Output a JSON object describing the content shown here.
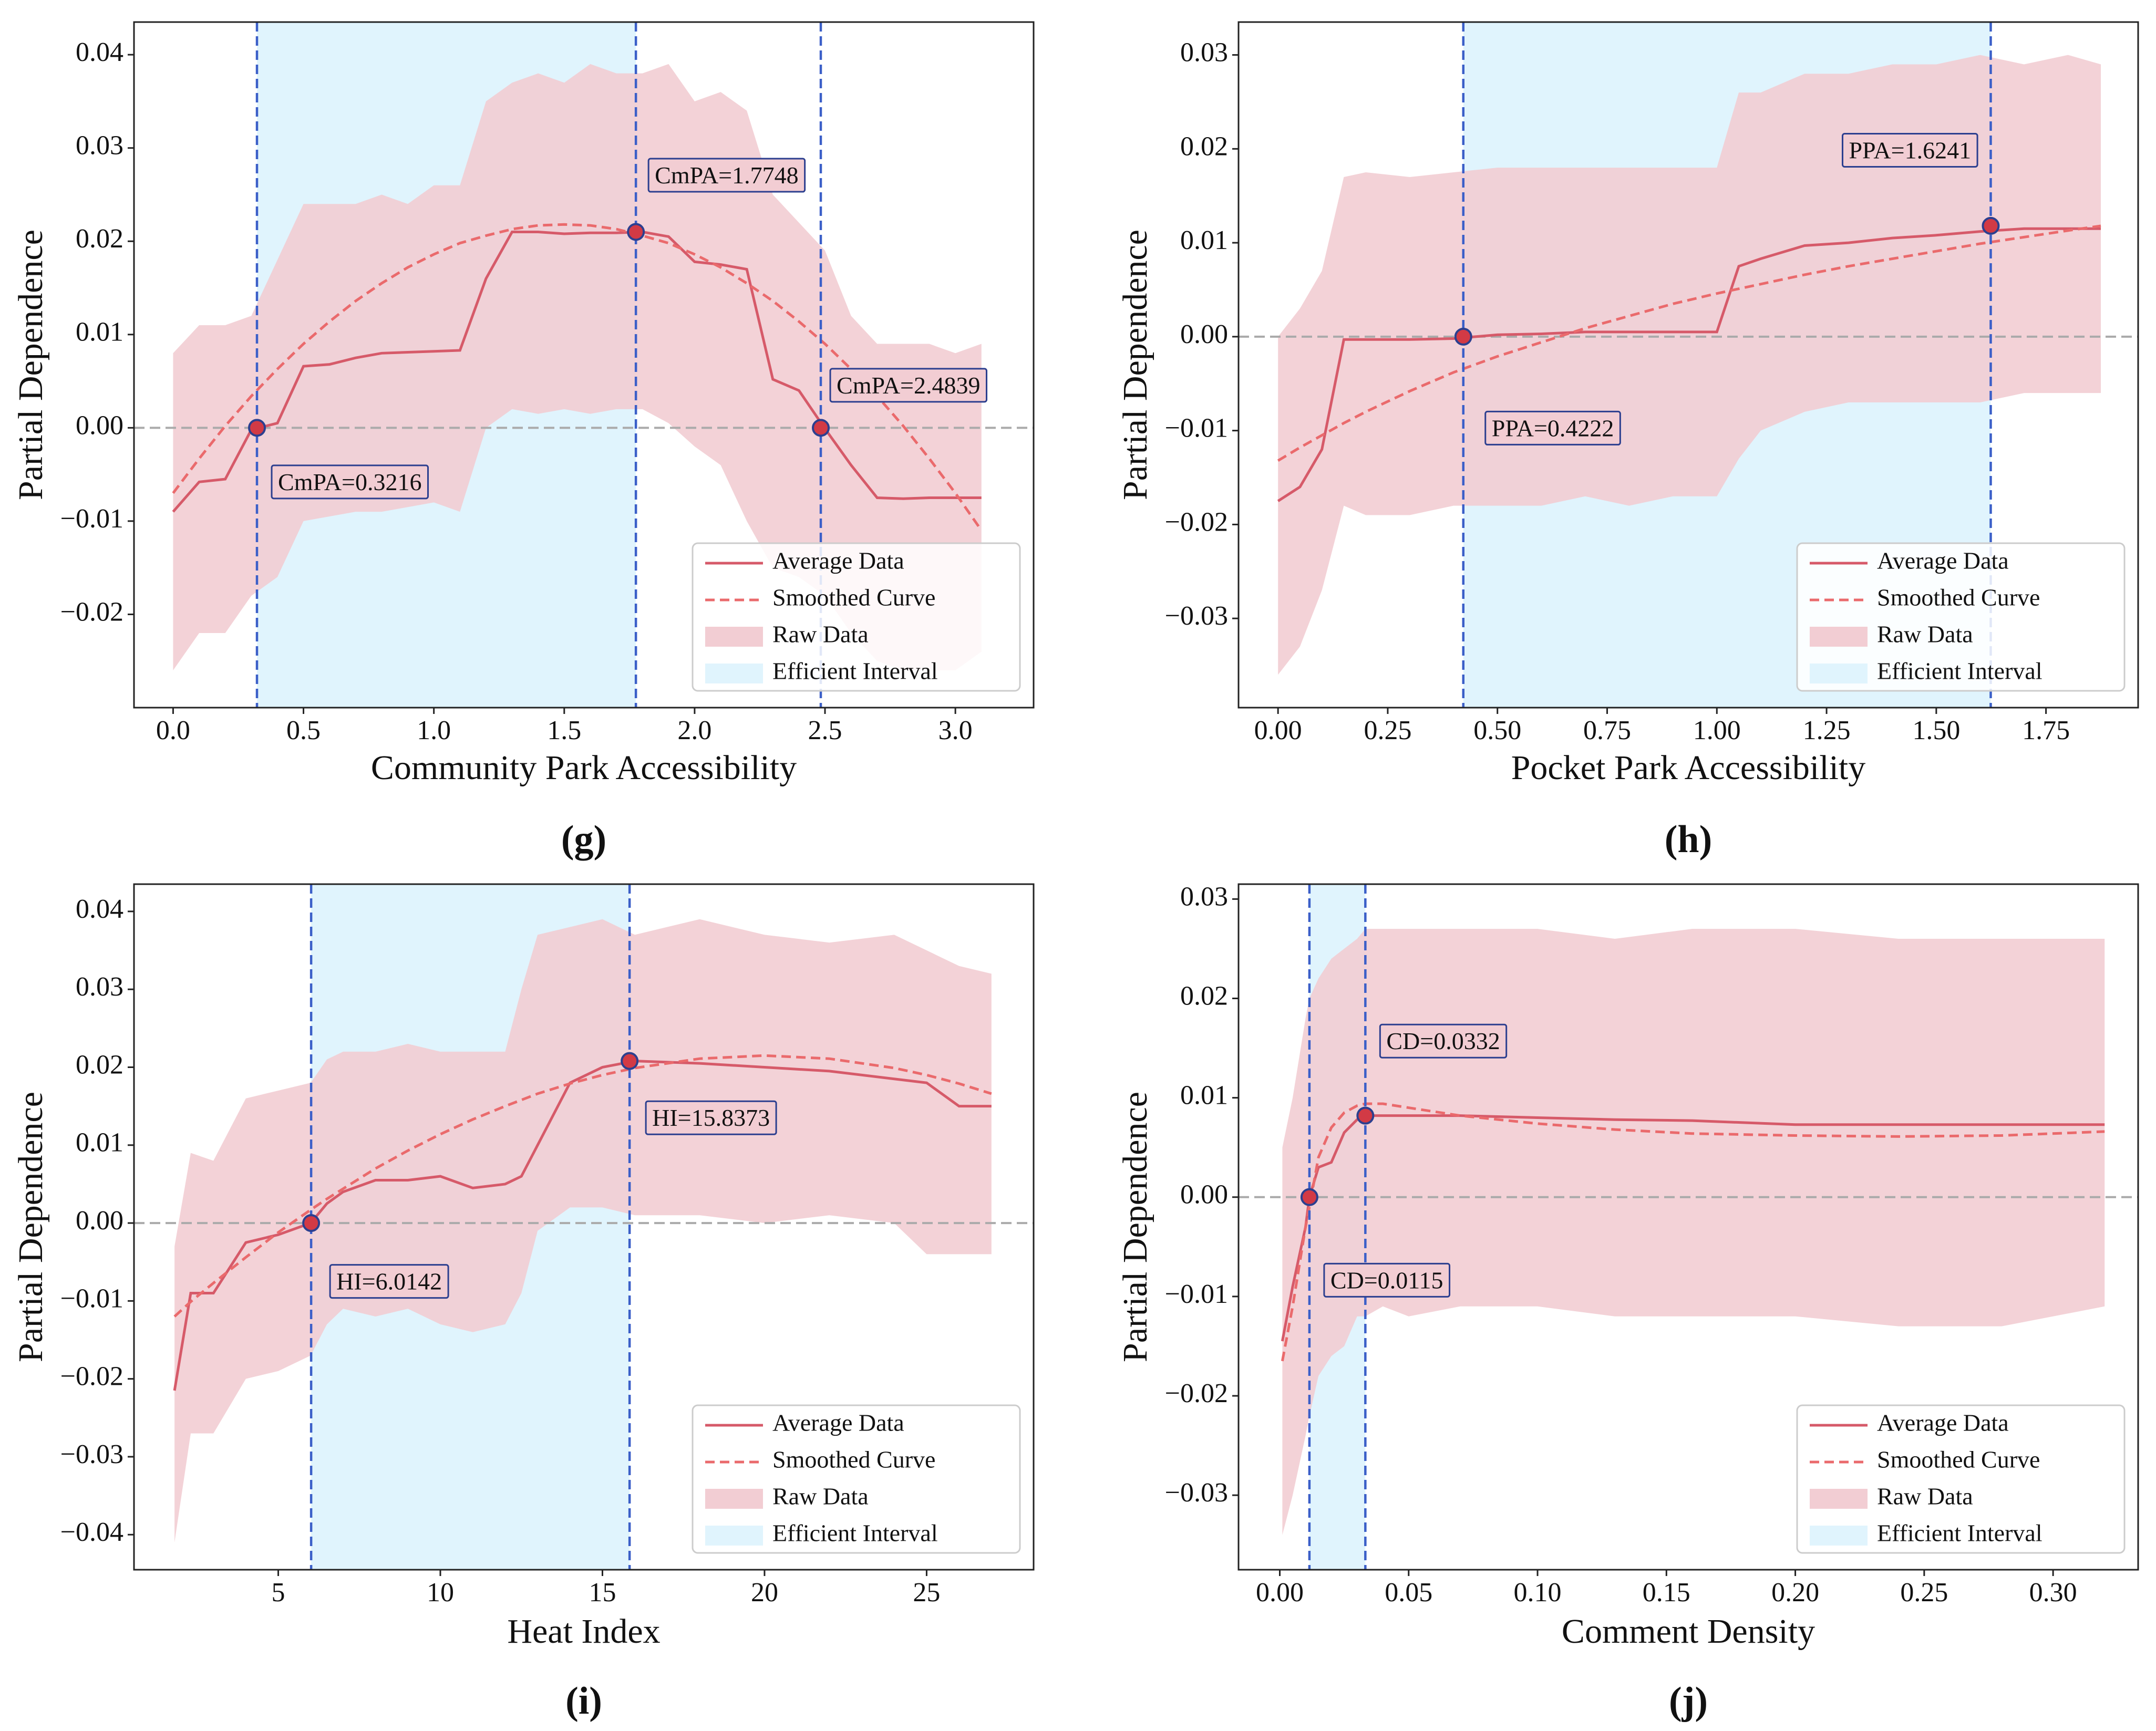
{
  "chart_data": [
    {
      "type": "line",
      "panel": "(g)",
      "xlabel": "Community Park Accessibility",
      "ylabel": "Partial Dependence",
      "xlim": [
        -0.15,
        3.3
      ],
      "ylim": [
        -0.03,
        0.0435
      ],
      "xticks": [
        {
          "value": 0,
          "label": "0.0"
        },
        0.5,
        {
          "value": 1,
          "label": "1.0"
        },
        1.5,
        {
          "value": 2,
          "label": "2.0"
        },
        2.5,
        {
          "value": 3,
          "label": "3.0"
        }
      ],
      "yticks": [
        {
          "value": -0.02,
          "label": "−0.02"
        },
        {
          "value": -0.01,
          "label": "−0.01"
        },
        {
          "value": 0,
          "label": "0.00"
        },
        0.01,
        0.02,
        0.03,
        0.04
      ],
      "x": [
        0,
        0.1,
        0.2,
        0.3,
        0.4,
        0.5,
        0.6,
        0.7,
        0.8,
        0.9,
        1.0,
        1.1,
        1.2,
        1.3,
        1.4,
        1.5,
        1.6,
        1.7,
        1.8,
        1.9,
        2.0,
        2.1,
        2.2,
        2.3,
        2.4,
        2.5,
        2.6,
        2.7,
        2.8,
        2.9,
        3.0,
        3.1
      ],
      "series": [
        {
          "name": "Average Data",
          "color": "#d65a69",
          "style": "solid",
          "values": [
            -0.009,
            -0.0058,
            -0.0055,
            -0.0002,
            0.0005,
            0.0066,
            0.0068,
            0.0075,
            0.008,
            0.0081,
            0.0082,
            0.0083,
            0.016,
            0.021,
            0.021,
            0.0208,
            0.0209,
            0.0209,
            0.021,
            0.0205,
            0.0178,
            0.0175,
            0.017,
            0.0052,
            0.004,
            -0.0001,
            -0.004,
            -0.0075,
            -0.0076,
            -0.0075,
            -0.0075,
            -0.0075
          ]
        },
        {
          "name": "Smoothed Curve",
          "color": "#ea6a6c",
          "style": "dashed",
          "values": [
            -0.007,
            -0.0033,
            0.0002,
            0.0034,
            0.0063,
            0.009,
            0.0114,
            0.0136,
            0.0155,
            0.0172,
            0.0186,
            0.0198,
            0.0206,
            0.0213,
            0.0217,
            0.0218,
            0.0217,
            0.0213,
            0.0206,
            0.0198,
            0.0186,
            0.0172,
            0.0155,
            0.0136,
            0.0114,
            0.009,
            0.0063,
            0.0034,
            0.0002,
            -0.0033,
            -0.007,
            -0.011
          ]
        }
      ],
      "band": {
        "name": "Raw Data",
        "color": "#f2cdd3",
        "lower": [
          -0.026,
          -0.022,
          -0.022,
          -0.018,
          -0.016,
          -0.01,
          -0.0095,
          -0.009,
          -0.009,
          -0.0085,
          -0.008,
          -0.009,
          0.0,
          0.002,
          0.0015,
          0.002,
          0.0015,
          0.002,
          0.002,
          0.0005,
          -0.002,
          -0.004,
          -0.01,
          -0.015,
          -0.016,
          -0.018,
          -0.022,
          -0.025,
          -0.026,
          -0.026,
          -0.026,
          -0.024
        ],
        "upper": [
          0.008,
          0.011,
          0.011,
          0.012,
          0.018,
          0.024,
          0.024,
          0.024,
          0.025,
          0.024,
          0.026,
          0.026,
          0.035,
          0.037,
          0.038,
          0.037,
          0.039,
          0.038,
          0.038,
          0.039,
          0.035,
          0.036,
          0.034,
          0.025,
          0.022,
          0.019,
          0.012,
          0.009,
          0.009,
          0.009,
          0.008,
          0.009
        ]
      },
      "interval": {
        "name": "Efficient Interval",
        "color": "#e0f4fd",
        "range": [
          0.3216,
          1.7748
        ]
      },
      "thresholds": [
        {
          "x": 0.3216,
          "y": 0,
          "label": "CmPA=0.3216"
        },
        {
          "x": 1.7748,
          "y": 0.021,
          "label": "CmPA=1.7748"
        },
        {
          "x": 2.4839,
          "y": 0,
          "label": "CmPA=2.4839"
        }
      ],
      "vline_color": "#3b5fc8",
      "point_color": "#d23a45",
      "baseline": 0,
      "legend": "lower right"
    },
    {
      "type": "line",
      "panel": "(h)",
      "xlabel": "Pocket Park Accessibility",
      "ylabel": "Partial Dependence",
      "xlim": [
        -0.09,
        1.96
      ],
      "ylim": [
        -0.0395,
        0.0335
      ],
      "xticks": [
        {
          "value": 0,
          "label": "0.00"
        },
        0.25,
        {
          "value": 0.5,
          "label": "0.50"
        },
        0.75,
        {
          "value": 1,
          "label": "1.00"
        },
        1.25,
        {
          "value": 1.5,
          "label": "1.50"
        },
        1.75
      ],
      "yticks": [
        {
          "value": -0.03,
          "label": "−0.03"
        },
        {
          "value": -0.02,
          "label": "−0.02"
        },
        {
          "value": -0.01,
          "label": "−0.01"
        },
        {
          "value": 0,
          "label": "0.00"
        },
        0.01,
        0.02,
        0.03
      ],
      "x": [
        0,
        0.05,
        0.1,
        0.15,
        0.2,
        0.3,
        0.4,
        0.5,
        0.6,
        0.7,
        0.8,
        0.9,
        1.0,
        1.05,
        1.1,
        1.2,
        1.3,
        1.4,
        1.5,
        1.6,
        1.7,
        1.8,
        1.875
      ],
      "series": [
        {
          "name": "Average Data",
          "color": "#d65a69",
          "style": "solid",
          "values": [
            -0.0175,
            -0.016,
            -0.012,
            -0.0003,
            -0.0003,
            -0.0003,
            -0.0002,
            0.0002,
            0.0003,
            0.0005,
            0.0005,
            0.0005,
            0.0005,
            0.0075,
            0.0083,
            0.0097,
            0.01,
            0.0105,
            0.0108,
            0.0112,
            0.0115,
            0.0115,
            0.0115
          ]
        },
        {
          "name": "Smoothed Curve",
          "color": "#ea6a6c",
          "style": "dashed",
          "values": [
            -0.0132,
            -0.0118,
            -0.0105,
            -0.0092,
            -0.008,
            -0.0058,
            -0.0038,
            -0.0021,
            -0.0006,
            0.0009,
            0.0022,
            0.0035,
            0.0046,
            0.0051,
            0.0056,
            0.0066,
            0.0075,
            0.0083,
            0.0091,
            0.0099,
            0.0106,
            0.0113,
            0.0118
          ]
        }
      ],
      "band": {
        "name": "Raw Data",
        "color": "#f2cdd3",
        "lower": [
          -0.036,
          -0.033,
          -0.027,
          -0.018,
          -0.019,
          -0.019,
          -0.018,
          -0.018,
          -0.018,
          -0.017,
          -0.018,
          -0.017,
          -0.017,
          -0.013,
          -0.01,
          -0.008,
          -0.007,
          -0.007,
          -0.007,
          -0.007,
          -0.006,
          -0.006,
          -0.006
        ],
        "upper": [
          0.0,
          0.003,
          0.007,
          0.017,
          0.0175,
          0.017,
          0.0175,
          0.018,
          0.018,
          0.018,
          0.018,
          0.018,
          0.018,
          0.026,
          0.026,
          0.028,
          0.028,
          0.029,
          0.029,
          0.03,
          0.029,
          0.03,
          0.029
        ]
      },
      "interval": {
        "name": "Efficient Interval",
        "color": "#e0f4fd",
        "range": [
          0.4222,
          1.6241
        ]
      },
      "thresholds": [
        {
          "x": 0.4222,
          "y": 0,
          "label": "PPA=0.4222"
        },
        {
          "x": 1.6241,
          "y": 0.0118,
          "label": "PPA=1.6241"
        }
      ],
      "vline_color": "#3b5fc8",
      "point_color": "#d23a45",
      "baseline": 0,
      "legend": "lower right"
    },
    {
      "type": "line",
      "panel": "(i)",
      "xlabel": "Heat Index",
      "ylabel": "Partial Dependence",
      "xlim": [
        0.55,
        28.3
      ],
      "ylim": [
        -0.0445,
        0.0435
      ],
      "xticks": [
        5,
        10,
        15,
        20,
        25
      ],
      "yticks": [
        {
          "value": -0.04,
          "label": "−0.04"
        },
        {
          "value": -0.03,
          "label": "−0.03"
        },
        {
          "value": -0.02,
          "label": "−0.02"
        },
        {
          "value": -0.01,
          "label": "−0.01"
        },
        {
          "value": 0,
          "label": "0.00"
        },
        0.01,
        0.02,
        0.03,
        0.04
      ],
      "x": [
        1.8,
        2.3,
        3,
        4,
        5,
        6,
        6.5,
        7,
        8,
        9,
        10,
        11,
        12,
        12.5,
        13,
        14,
        15,
        16,
        18,
        20,
        22,
        24,
        25,
        26,
        27
      ],
      "series": [
        {
          "name": "Average Data",
          "color": "#d65a69",
          "style": "solid",
          "values": [
            -0.0215,
            -0.009,
            -0.009,
            -0.0025,
            -0.0015,
            0.0,
            0.0025,
            0.004,
            0.0055,
            0.0055,
            0.006,
            0.0045,
            0.005,
            0.006,
            0.01,
            0.018,
            0.02,
            0.0208,
            0.0205,
            0.02,
            0.0195,
            0.0185,
            0.018,
            0.015,
            0.015
          ]
        },
        {
          "name": "Smoothed Curve",
          "color": "#ea6a6c",
          "style": "dashed",
          "values": [
            -0.012,
            -0.0101,
            -0.0077,
            -0.0044,
            -0.0012,
            0.0017,
            0.0031,
            0.0044,
            0.007,
            0.0093,
            0.0114,
            0.0133,
            0.015,
            0.0158,
            0.0166,
            0.0179,
            0.019,
            0.0199,
            0.0211,
            0.0215,
            0.0211,
            0.0199,
            0.019,
            0.0179,
            0.0166
          ]
        }
      ],
      "band": {
        "name": "Raw Data",
        "color": "#f2cdd3",
        "lower": [
          -0.041,
          -0.027,
          -0.027,
          -0.02,
          -0.019,
          -0.017,
          -0.013,
          -0.011,
          -0.012,
          -0.011,
          -0.013,
          -0.014,
          -0.013,
          -0.009,
          -0.001,
          0.002,
          0.002,
          0.001,
          0.001,
          0.0,
          0.001,
          0.0,
          -0.004,
          -0.004,
          -0.004
        ],
        "upper": [
          -0.003,
          0.009,
          0.008,
          0.016,
          0.017,
          0.018,
          0.021,
          0.022,
          0.022,
          0.023,
          0.022,
          0.022,
          0.022,
          0.03,
          0.037,
          0.038,
          0.039,
          0.037,
          0.039,
          0.037,
          0.036,
          0.037,
          0.035,
          0.033,
          0.032
        ]
      },
      "interval": {
        "name": "Efficient Interval",
        "color": "#e0f4fd",
        "range": [
          6.0142,
          15.8373
        ]
      },
      "thresholds": [
        {
          "x": 6.0142,
          "y": 0,
          "label": "HI=6.0142"
        },
        {
          "x": 15.8373,
          "y": 0.0208,
          "label": "HI=15.8373"
        }
      ],
      "vline_color": "#3b5fc8",
      "point_color": "#d23a45",
      "baseline": 0,
      "legend": "lower right"
    },
    {
      "type": "line",
      "panel": "(j)",
      "xlabel": "Comment Density",
      "ylabel": "Partial Dependence",
      "xlim": [
        -0.016,
        0.333
      ],
      "ylim": [
        -0.0375,
        0.0315
      ],
      "xticks": [
        {
          "value": 0,
          "label": "0.00"
        },
        0.05,
        {
          "value": 0.1,
          "label": "0.10"
        },
        0.15,
        {
          "value": 0.2,
          "label": "0.20"
        },
        0.25,
        {
          "value": 0.3,
          "label": "0.30"
        }
      ],
      "yticks": [
        {
          "value": -0.03,
          "label": "−0.03"
        },
        {
          "value": -0.02,
          "label": "−0.02"
        },
        {
          "value": -0.01,
          "label": "−0.01"
        },
        {
          "value": 0,
          "label": "0.00"
        },
        0.01,
        0.02,
        0.03
      ],
      "x": [
        0.001,
        0.005,
        0.01,
        0.0115,
        0.015,
        0.02,
        0.025,
        0.03,
        0.0332,
        0.04,
        0.05,
        0.07,
        0.1,
        0.13,
        0.16,
        0.2,
        0.24,
        0.28,
        0.32
      ],
      "series": [
        {
          "name": "Average Data",
          "color": "#d65a69",
          "style": "solid",
          "values": [
            -0.0145,
            -0.009,
            -0.003,
            0.0,
            0.003,
            0.0035,
            0.0065,
            0.0078,
            0.0082,
            0.0082,
            0.0082,
            0.0082,
            0.008,
            0.0078,
            0.0077,
            0.0073,
            0.0073,
            0.0073,
            0.0073
          ]
        },
        {
          "name": "Smoothed Curve",
          "color": "#ea6a6c",
          "style": "dashed",
          "values": [
            -0.0165,
            -0.011,
            -0.003,
            -0.001,
            0.004,
            0.007,
            0.0085,
            0.0092,
            0.0094,
            0.0094,
            0.009,
            0.0082,
            0.0074,
            0.0068,
            0.0064,
            0.0062,
            0.0061,
            0.0062,
            0.0066
          ]
        }
      ],
      "band": {
        "name": "Raw Data",
        "color": "#f2cdd3",
        "lower": [
          -0.034,
          -0.03,
          -0.024,
          -0.022,
          -0.018,
          -0.016,
          -0.015,
          -0.012,
          -0.012,
          -0.011,
          -0.012,
          -0.011,
          -0.011,
          -0.012,
          -0.012,
          -0.012,
          -0.013,
          -0.013,
          -0.011
        ],
        "upper": [
          0.005,
          0.01,
          0.018,
          0.02,
          0.022,
          0.024,
          0.025,
          0.026,
          0.027,
          0.027,
          0.027,
          0.027,
          0.027,
          0.026,
          0.027,
          0.027,
          0.026,
          0.026,
          0.026
        ]
      },
      "interval": {
        "name": "Efficient Interval",
        "color": "#e0f4fd",
        "range": [
          0.0115,
          0.0332
        ]
      },
      "thresholds": [
        {
          "x": 0.0332,
          "y": 0.0082,
          "label": "CD=0.0332"
        },
        {
          "x": 0.0115,
          "y": 0,
          "label": "CD=0.0115"
        }
      ],
      "vline_color": "#3b5fc8",
      "point_color": "#d23a45",
      "baseline": 0,
      "legend": "lower right"
    }
  ]
}
